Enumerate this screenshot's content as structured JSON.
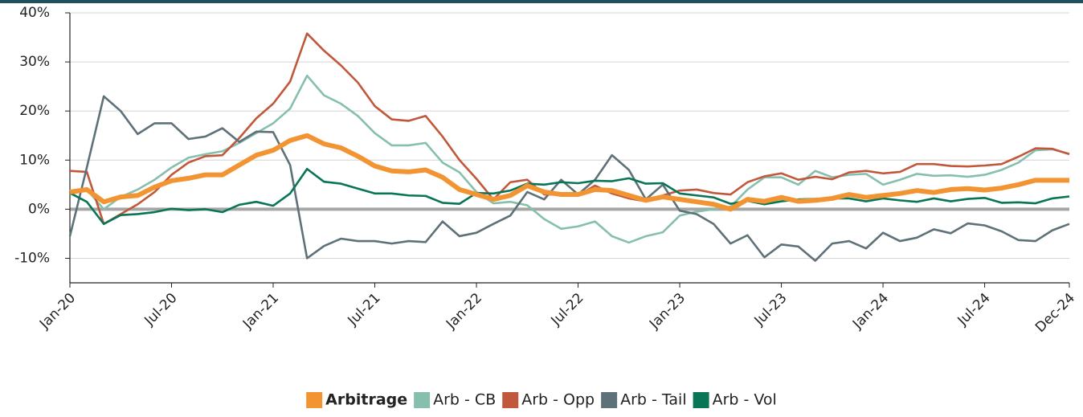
{
  "chart_data": {
    "type": "line",
    "categories": [
      "Jan-20",
      null,
      null,
      null,
      null,
      null,
      "Jul-20",
      null,
      null,
      null,
      null,
      null,
      "Jan-21",
      null,
      null,
      null,
      null,
      null,
      "Jul-21",
      null,
      null,
      null,
      null,
      null,
      "Jan-22",
      null,
      null,
      null,
      null,
      null,
      "Jul-22",
      null,
      null,
      null,
      null,
      null,
      "Jan-23",
      null,
      null,
      null,
      null,
      null,
      "Jul-23",
      null,
      null,
      null,
      null,
      null,
      "Jan-24",
      null,
      null,
      null,
      null,
      null,
      "Jul-24",
      null,
      null,
      null,
      null,
      "Dec-24"
    ],
    "ylim": [
      -15,
      40
    ],
    "yticks": [
      {
        "value": -10,
        "label": "-10%"
      },
      {
        "value": 0,
        "label": "0%"
      },
      {
        "value": 10,
        "label": "10%"
      },
      {
        "value": 20,
        "label": "20%"
      },
      {
        "value": 30,
        "label": "30%"
      },
      {
        "value": 40,
        "label": "40%"
      }
    ],
    "grid": true,
    "legend": "bottom",
    "series": [
      {
        "name": "Arbitrage",
        "color": "#f39433",
        "values": [
          3.5,
          4,
          1.5,
          2.5,
          2.8,
          4.5,
          5.8,
          6.3,
          7,
          7,
          9,
          11,
          12,
          14,
          15,
          13.3,
          12.5,
          10.8,
          8.8,
          7.8,
          7.6,
          8,
          6.5,
          4,
          3,
          2,
          2.8,
          4.8,
          3.5,
          3,
          3,
          4,
          3.8,
          2.8,
          1.8,
          2.5,
          2,
          1.5,
          1,
          0,
          2,
          1.6,
          2.4,
          1.6,
          1.8,
          2.2,
          3,
          2.4,
          2.8,
          3.2,
          3.8,
          3.4,
          4,
          4.2,
          3.9,
          4.3,
          5,
          5.9,
          5.9,
          5.9
        ]
      },
      {
        "name": "Arb - CB",
        "color": "#86bfae",
        "values": [
          3,
          4,
          0,
          2.5,
          4,
          6,
          8.5,
          10.5,
          11.2,
          11.8,
          13.5,
          15.5,
          17.5,
          20.5,
          27.2,
          23.2,
          21.5,
          19,
          15.5,
          13,
          13,
          13.5,
          9.5,
          7.5,
          3.5,
          1.2,
          1.5,
          0.8,
          -2,
          -4,
          -3.5,
          -2.5,
          -5.5,
          -6.8,
          -5.5,
          -4.7,
          -1.3,
          -0.5,
          0,
          0.5,
          4,
          6.5,
          6.5,
          5,
          7.8,
          6.5,
          7,
          7.2,
          5,
          6,
          7.2,
          6.8,
          6.9,
          6.6,
          7,
          8,
          9.5,
          12,
          12.2,
          11.3
        ]
      },
      {
        "name": "Arb - Opp",
        "color": "#c1583b",
        "values": [
          7.8,
          7.6,
          -3,
          -1,
          1,
          3.5,
          7,
          9.5,
          10.8,
          11,
          14.5,
          18.5,
          21.5,
          26,
          35.8,
          32.3,
          29.3,
          25.8,
          21,
          18.3,
          18,
          19,
          14.8,
          10,
          6.2,
          2,
          5.5,
          6,
          3,
          3,
          2.8,
          4.8,
          3.2,
          2.2,
          1.6,
          2.8,
          3.8,
          4,
          3.3,
          3,
          5.5,
          6.7,
          7.3,
          6,
          6.6,
          6.1,
          7.5,
          7.8,
          7.3,
          7.6,
          9.2,
          9.2,
          8.8,
          8.7,
          8.9,
          9.2,
          10.7,
          12.4,
          12.3,
          11.2
        ]
      },
      {
        "name": "Arb - Tail",
        "color": "#5f7178",
        "values": [
          -5.5,
          8.5,
          23,
          20,
          15.3,
          17.5,
          17.5,
          14.3,
          14.8,
          16.5,
          13.7,
          15.8,
          15.7,
          9,
          -10,
          -7.5,
          -6,
          -6.5,
          -6.5,
          -7,
          -6.5,
          -6.7,
          -2.5,
          -5.5,
          -4.8,
          -3,
          -1.3,
          3.5,
          2,
          6,
          3,
          6,
          11,
          8,
          2,
          5,
          -0.3,
          -1,
          -3,
          -7,
          -5.3,
          -9.8,
          -7.2,
          -7.6,
          -10.5,
          -7,
          -6.5,
          -8,
          -4.8,
          -6.5,
          -5.8,
          -4.1,
          -4.9,
          -2.9,
          -3.3,
          -4.5,
          -6.3,
          -6.5,
          -4.3,
          -3
        ]
      },
      {
        "name": "Arb - Vol",
        "color": "#087556",
        "values": [
          3.3,
          1.5,
          -3,
          -1.2,
          -1,
          -0.6,
          0.1,
          -0.2,
          0,
          -0.6,
          0.9,
          1.5,
          0.7,
          3.2,
          8.2,
          5.6,
          5.2,
          4.2,
          3.2,
          3.2,
          2.8,
          2.7,
          1.3,
          1.1,
          3.3,
          3.2,
          3.8,
          5.2,
          5,
          5.5,
          5.3,
          5.8,
          5.7,
          6.3,
          5.2,
          5.3,
          3.2,
          2.8,
          2.4,
          1.1,
          1.7,
          1,
          1.6,
          2,
          2.1,
          2.2,
          2.2,
          1.6,
          2.2,
          1.8,
          1.5,
          2.2,
          1.6,
          2.1,
          2.3,
          1.3,
          1.4,
          1.2,
          2.2,
          2.6
        ]
      }
    ]
  }
}
